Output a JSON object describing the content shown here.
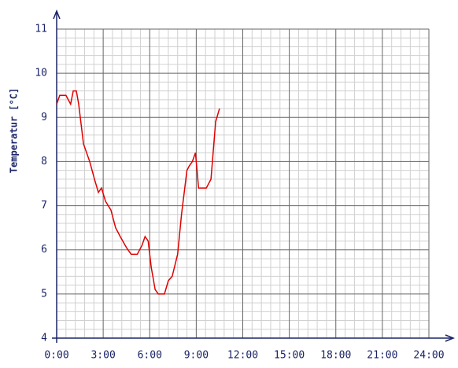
{
  "chart_data": {
    "type": "line",
    "ylabel": "Temperatur [°C]",
    "x": [
      0,
      0.2,
      0.6,
      0.9,
      1.07,
      1.27,
      1.42,
      1.73,
      2.13,
      2.44,
      2.69,
      2.89,
      3.15,
      3.5,
      3.8,
      4.1,
      4.5,
      4.8,
      5.2,
      5.5,
      5.7,
      5.9,
      6.1,
      6.35,
      6.55,
      6.95,
      7.2,
      7.45,
      7.8,
      8.05,
      8.4,
      8.55,
      8.75,
      8.95,
      9.15,
      9.65,
      9.95,
      10.25,
      10.5
    ],
    "series": [
      {
        "color": "#e00000",
        "values": [
          9.3,
          9.5,
          9.5,
          9.3,
          9.6,
          9.6,
          9.3,
          8.4,
          8.0,
          7.6,
          7.3,
          7.4,
          7.1,
          6.9,
          6.5,
          6.3,
          6.05,
          5.9,
          5.9,
          6.1,
          6.3,
          6.2,
          5.6,
          5.1,
          5.0,
          5.0,
          5.3,
          5.4,
          5.9,
          6.8,
          7.8,
          7.9,
          8.0,
          8.2,
          7.4,
          7.4,
          7.6,
          8.9,
          9.2
        ]
      }
    ],
    "xlim": [
      0,
      24
    ],
    "xticks": [
      {
        "value": 0,
        "label": "0:00"
      },
      {
        "value": 3,
        "label": "3:00"
      },
      {
        "value": 6,
        "label": "6:00"
      },
      {
        "value": 9,
        "label": "9:00"
      },
      {
        "value": 12,
        "label": "12:00"
      },
      {
        "value": 15,
        "label": "15:00"
      },
      {
        "value": 18,
        "label": "18:00"
      },
      {
        "value": 21,
        "label": "21:00"
      },
      {
        "value": 24,
        "label": "24:00"
      }
    ],
    "ylim": [
      4,
      11
    ],
    "yticks": [
      4,
      5,
      6,
      7,
      8,
      9,
      10,
      11
    ],
    "grid": true
  }
}
